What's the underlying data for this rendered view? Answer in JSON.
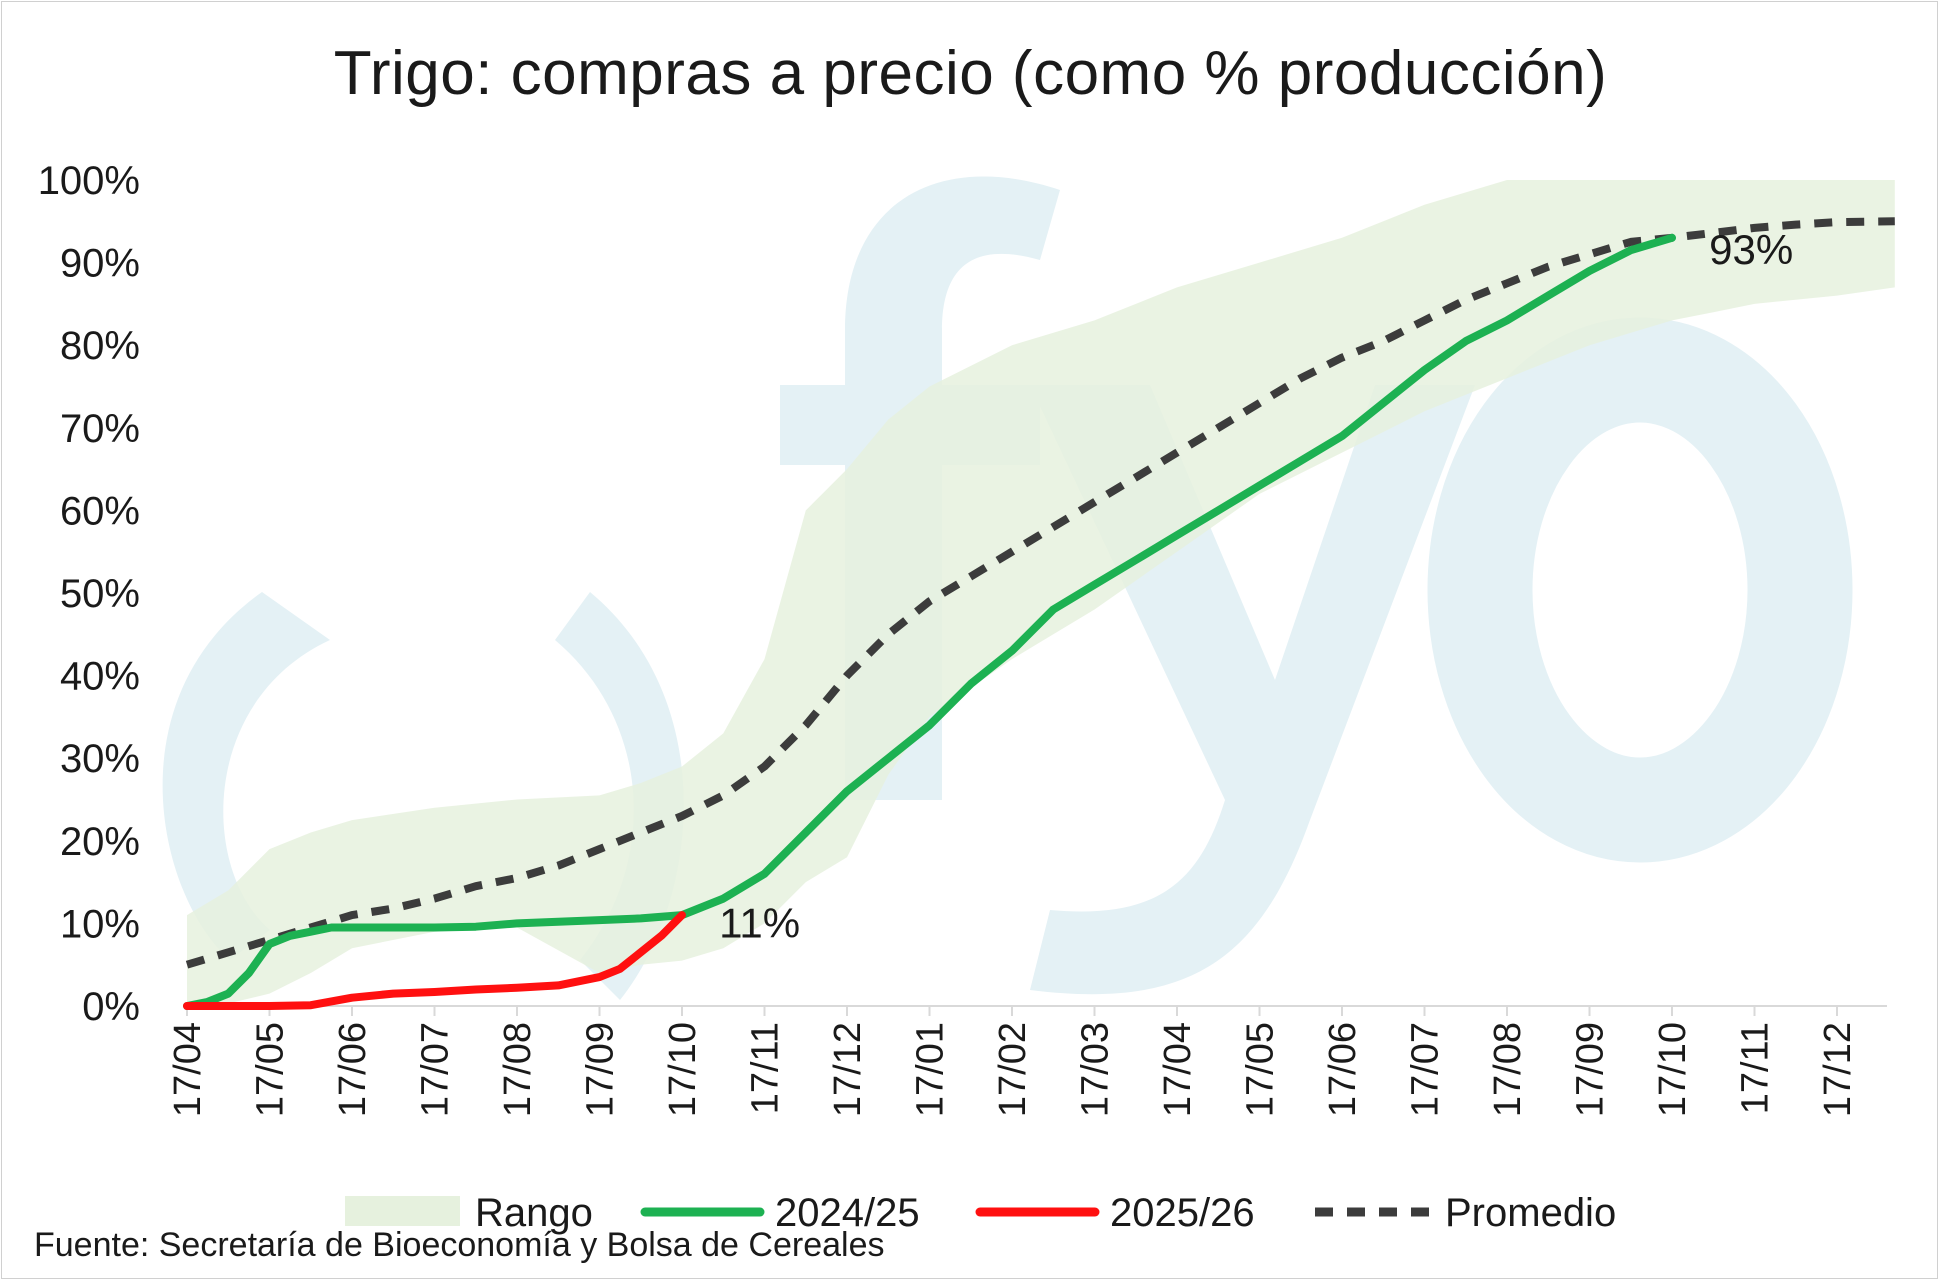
{
  "chart_data": {
    "type": "line",
    "title": "Trigo: compras a precio (como % producción)",
    "ylim": [
      0,
      100
    ],
    "yticks": [
      "0%",
      "10%",
      "20%",
      "30%",
      "40%",
      "50%",
      "60%",
      "70%",
      "80%",
      "90%",
      "100%"
    ],
    "xticks": [
      "17/04",
      "17/05",
      "17/06",
      "17/07",
      "17/08",
      "17/09",
      "17/10",
      "17/11",
      "17/12",
      "17/01",
      "17/02",
      "17/03",
      "17/04",
      "17/05",
      "17/06",
      "17/07",
      "17/08",
      "17/09",
      "17/10",
      "17/11",
      "17/12"
    ],
    "range": {
      "name": "Rango",
      "color": "#e6f1de",
      "x": [
        0,
        0.5,
        1,
        1.5,
        2,
        3,
        4,
        5,
        5.5,
        6,
        6.5,
        7,
        7.5,
        8,
        8.5,
        9,
        10,
        11,
        12,
        13,
        14,
        15,
        16,
        17,
        18,
        18.5,
        19,
        20,
        20.7
      ],
      "low": [
        0,
        0.3,
        1.5,
        4,
        7,
        9,
        9.5,
        4,
        5,
        5.5,
        7,
        10,
        15,
        18,
        28,
        35,
        42,
        48,
        55,
        62,
        67,
        72,
        76,
        80,
        83,
        84,
        85,
        86,
        87
      ],
      "high": [
        11,
        14,
        19,
        21,
        22.5,
        24,
        25,
        25.5,
        27,
        29,
        33,
        42,
        60,
        65,
        71,
        75,
        80,
        83,
        87,
        90,
        93,
        97,
        100,
        100,
        100,
        100,
        100,
        100,
        100
      ]
    },
    "series": [
      {
        "name": "2024/25",
        "color": "#1db152",
        "x": [
          0,
          0.25,
          0.5,
          0.75,
          1,
          1.25,
          1.5,
          1.75,
          2,
          2.5,
          3,
          3.5,
          4,
          4.5,
          5,
          5.5,
          6,
          6.5,
          7,
          7.5,
          8,
          8.5,
          9,
          9.5,
          10,
          10.5,
          11,
          11.5,
          12,
          12.5,
          13,
          13.5,
          14,
          14.5,
          15,
          15.5,
          16,
          16.5,
          17,
          17.5,
          18
        ],
        "values": [
          0,
          0.5,
          1.5,
          4,
          7.5,
          8.5,
          9,
          9.5,
          9.5,
          9.5,
          9.5,
          9.6,
          10,
          10.2,
          10.4,
          10.6,
          11,
          13,
          16,
          21,
          26,
          30,
          34,
          39,
          43,
          48,
          51,
          54,
          57,
          60,
          63,
          66,
          69,
          73,
          77,
          80.5,
          83,
          86,
          89,
          91.5,
          93
        ]
      },
      {
        "name": "2025/26",
        "color": "#ff1010",
        "x": [
          0,
          0.5,
          1,
          1.5,
          2,
          2.5,
          3,
          3.5,
          4,
          4.5,
          5,
          5.25,
          5.5,
          5.75,
          6
        ],
        "values": [
          0,
          0,
          0,
          0.1,
          1,
          1.5,
          1.7,
          2,
          2.2,
          2.5,
          3.5,
          4.5,
          6.5,
          8.5,
          11
        ]
      },
      {
        "name": "Promedio",
        "color": "#3c3c3c",
        "x": [
          0,
          0.5,
          1,
          1.5,
          2,
          2.5,
          3,
          3.5,
          4,
          4.5,
          5,
          5.5,
          6,
          6.5,
          7,
          7.5,
          8,
          8.5,
          9,
          9.5,
          10,
          10.5,
          11,
          11.5,
          12,
          12.5,
          13,
          13.5,
          14,
          14.5,
          15,
          15.5,
          16,
          16.5,
          17,
          17.5,
          18,
          18.5,
          19,
          19.5,
          20,
          20.7
        ],
        "values": [
          5,
          6.5,
          8,
          9.5,
          11,
          11.8,
          13,
          14.5,
          15.5,
          17,
          19,
          21,
          23,
          25.5,
          29,
          34,
          40,
          45,
          49,
          52,
          55,
          58,
          61,
          64,
          67,
          70,
          73,
          76,
          78.5,
          80.5,
          83,
          85.5,
          87.5,
          89.5,
          91,
          92.5,
          93,
          93.6,
          94.2,
          94.6,
          94.9,
          95
        ]
      }
    ],
    "annotations": [
      {
        "text": "11%",
        "x": 6.45,
        "y": 10
      },
      {
        "text": "93%",
        "x": 18.45,
        "y": 91.5
      }
    ],
    "legend": {
      "position": "bottom",
      "items": [
        {
          "label": "Rango",
          "style": "area"
        },
        {
          "label": "2024/25",
          "style": "line"
        },
        {
          "label": "2025/26",
          "style": "line"
        },
        {
          "label": "Promedio",
          "style": "dashed"
        }
      ]
    },
    "watermark": "fyo"
  },
  "source": "Fuente: Secretaría de Bioeconomía y Bolsa de Cereales"
}
